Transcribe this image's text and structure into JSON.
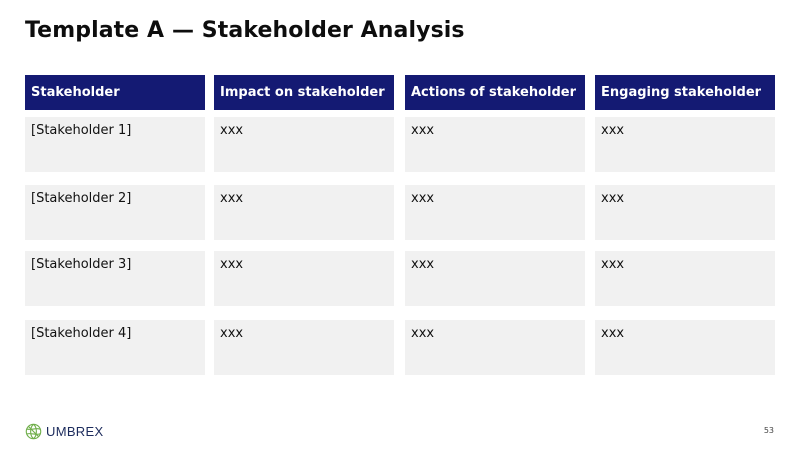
{
  "title": "Template A — Stakeholder Analysis",
  "table": {
    "headers": [
      "Stakeholder",
      "Impact on stakeholder",
      "Actions of stakeholder",
      "Engaging stakeholder"
    ],
    "rows": [
      [
        "[Stakeholder 1]",
        "xxx",
        "xxx",
        "xxx"
      ],
      [
        "[Stakeholder 2]",
        "xxx",
        "xxx",
        "xxx"
      ],
      [
        "[Stakeholder 3]",
        "xxx",
        "xxx",
        "xxx"
      ],
      [
        "[Stakeholder 4]",
        "xxx",
        "xxx",
        "xxx"
      ]
    ]
  },
  "colors": {
    "header_bg": "#141a73",
    "cell_bg": "#f1f1f1",
    "logo_green": "#6fae4a",
    "logo_text": "#1c2b5c"
  },
  "footer": {
    "logo_text": "UMBREX",
    "logo_icon": "umbrex-globe-icon",
    "page_number": "53"
  }
}
